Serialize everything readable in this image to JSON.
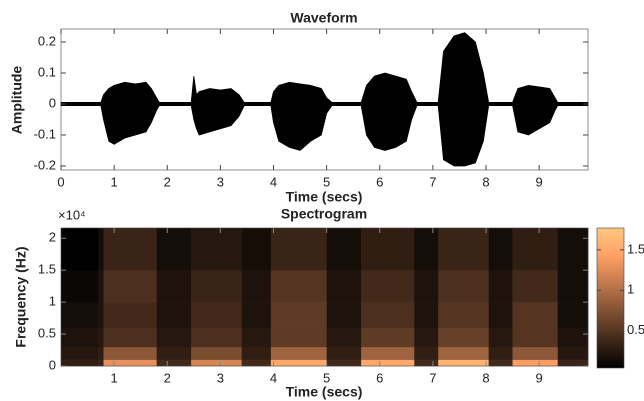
{
  "chart_data": [
    {
      "type": "waveform",
      "title": "Waveform",
      "xlabel": "Time (secs)",
      "ylabel": "Amplitude",
      "color": "#000000",
      "x": [
        0,
        0.75,
        0.8,
        0.9,
        1.0,
        1.2,
        1.4,
        1.6,
        1.7,
        1.8,
        1.85,
        2.45,
        2.5,
        2.55,
        2.6,
        2.8,
        3.0,
        3.2,
        3.35,
        3.45,
        3.95,
        4.0,
        4.1,
        4.3,
        4.5,
        4.7,
        4.9,
        5.0,
        5.1,
        5.65,
        5.75,
        5.9,
        6.1,
        6.3,
        6.5,
        6.6,
        6.7,
        7.1,
        7.2,
        7.4,
        7.6,
        7.8,
        7.95,
        8.05,
        8.5,
        8.6,
        8.8,
        9.0,
        9.2,
        9.3,
        9.35,
        9.92
      ],
      "upper": [
        0.005,
        0.005,
        0.03,
        0.05,
        0.06,
        0.07,
        0.065,
        0.07,
        0.05,
        0.02,
        0.005,
        0.005,
        0.09,
        0.03,
        0.04,
        0.05,
        0.045,
        0.05,
        0.03,
        0.005,
        0.005,
        0.04,
        0.06,
        0.07,
        0.065,
        0.06,
        0.05,
        0.02,
        0.005,
        0.005,
        0.06,
        0.09,
        0.1,
        0.09,
        0.08,
        0.04,
        0.005,
        0.005,
        0.17,
        0.22,
        0.23,
        0.2,
        0.1,
        0.005,
        0.005,
        0.05,
        0.06,
        0.055,
        0.05,
        0.02,
        0.005,
        0.005
      ],
      "lower": [
        -0.005,
        -0.005,
        -0.05,
        -0.12,
        -0.13,
        -0.11,
        -0.1,
        -0.09,
        -0.06,
        -0.02,
        -0.005,
        -0.005,
        -0.05,
        -0.08,
        -0.1,
        -0.09,
        -0.08,
        -0.07,
        -0.04,
        -0.005,
        -0.005,
        -0.06,
        -0.12,
        -0.14,
        -0.15,
        -0.12,
        -0.1,
        -0.03,
        -0.005,
        -0.005,
        -0.1,
        -0.14,
        -0.15,
        -0.14,
        -0.12,
        -0.05,
        -0.005,
        -0.005,
        -0.18,
        -0.2,
        -0.2,
        -0.19,
        -0.12,
        -0.005,
        -0.005,
        -0.09,
        -0.1,
        -0.08,
        -0.06,
        -0.02,
        -0.005,
        -0.005
      ],
      "xlim": [
        0,
        9.92
      ],
      "ylim": [
        -0.213,
        0.242
      ],
      "xticks": [
        0,
        1,
        2,
        3,
        4,
        5,
        6,
        7,
        8,
        9
      ],
      "yticks": [
        -0.2,
        -0.1,
        0,
        0.1,
        0.2
      ]
    },
    {
      "type": "heatmap",
      "title": "Spectrogram",
      "xlabel": "Time (secs)",
      "ylabel": "Frequency (Hz)",
      "y_multiplier": "×10⁴",
      "colormap": "copper",
      "x_edges": [
        0,
        0.7,
        0.8,
        1.8,
        2.45,
        3.4,
        3.95,
        5.0,
        5.65,
        6.65,
        7.1,
        8.05,
        8.5,
        9.35,
        9.92
      ],
      "y_edges": [
        0,
        0.1,
        0.3,
        0.6,
        1.0,
        1.5,
        2.16
      ],
      "z": [
        [
          0.3,
          0.35,
          1.3,
          0.4,
          1.2,
          0.4,
          1.5,
          0.4,
          1.5,
          0.4,
          1.6,
          0.4,
          1.4,
          0.35
        ],
        [
          0.25,
          0.3,
          0.8,
          0.3,
          0.7,
          0.3,
          0.9,
          0.3,
          0.9,
          0.3,
          0.9,
          0.3,
          0.8,
          0.25
        ],
        [
          0.2,
          0.25,
          0.45,
          0.25,
          0.45,
          0.25,
          0.55,
          0.25,
          0.55,
          0.25,
          0.6,
          0.25,
          0.5,
          0.2
        ],
        [
          0.15,
          0.2,
          0.4,
          0.2,
          0.4,
          0.2,
          0.55,
          0.2,
          0.45,
          0.2,
          0.5,
          0.2,
          0.5,
          0.15
        ],
        [
          0.1,
          0.2,
          0.45,
          0.2,
          0.35,
          0.2,
          0.5,
          0.2,
          0.4,
          0.2,
          0.45,
          0.2,
          0.4,
          0.15
        ],
        [
          0.05,
          0.15,
          0.35,
          0.15,
          0.25,
          0.15,
          0.35,
          0.15,
          0.3,
          0.15,
          0.35,
          0.15,
          0.3,
          0.15
        ]
      ],
      "xlim": [
        0,
        9.92
      ],
      "ylim": [
        0,
        2.16
      ],
      "clim": [
        0.04,
        1.77
      ],
      "xticks": [
        1,
        2,
        3,
        4,
        5,
        6,
        7,
        8,
        9
      ],
      "yticks": [
        0,
        0.5,
        1,
        1.5,
        2
      ],
      "cticks": [
        0.5,
        1,
        1.5
      ]
    }
  ]
}
